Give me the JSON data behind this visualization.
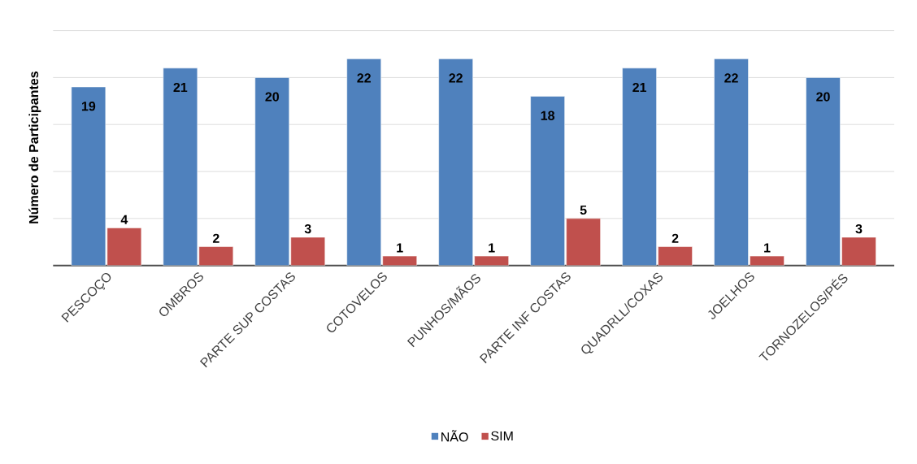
{
  "chart_data": {
    "type": "bar",
    "ylabel": "Número de Participantes",
    "categories": [
      "PESCOÇO",
      "OMBROS",
      "PARTE SUP COSTAS",
      "COTOVELOS",
      "PUNHOS/MÃOS",
      "PARTE INF COSTAS",
      "QUADRLL/COXAS",
      "JOELHOS",
      "TORNOZELOS/PÉS"
    ],
    "series": [
      {
        "name": "NÃO",
        "color": "#4f81bd",
        "values": [
          19,
          21,
          20,
          22,
          22,
          18,
          21,
          22,
          20
        ]
      },
      {
        "name": "SIM",
        "color": "#c0504d",
        "values": [
          4,
          2,
          3,
          1,
          1,
          5,
          2,
          1,
          3
        ]
      }
    ],
    "tick_labels": "x",
    "grid": "y",
    "legend": "bottom",
    "data_labels": true
  }
}
